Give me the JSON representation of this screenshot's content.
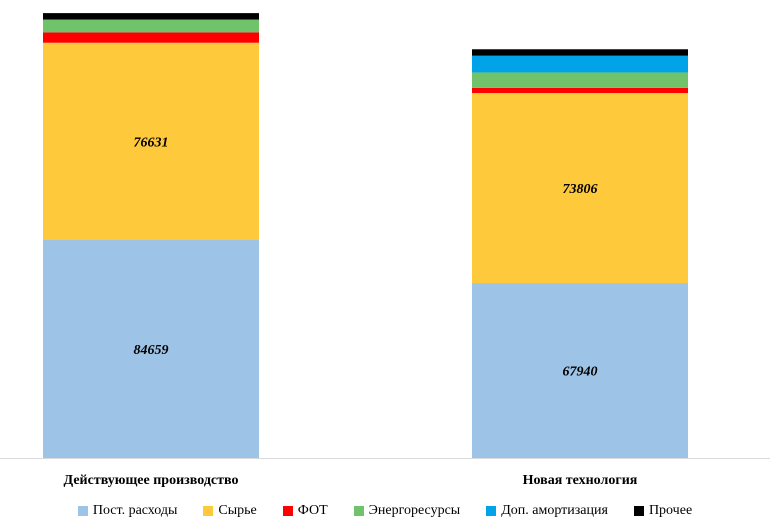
{
  "chart_data": {
    "type": "bar",
    "stacked": true,
    "categories": [
      "Действующее производство",
      "Новая технология"
    ],
    "series": [
      {
        "name": "Пост. расходы",
        "color": "#9dc3e6",
        "values": [
          84659,
          67940
        ],
        "labels": [
          "84659",
          "67940"
        ]
      },
      {
        "name": "Сырье",
        "color": "#ffc93c",
        "values": [
          76631,
          73806
        ],
        "labels": [
          "76631",
          "73806"
        ]
      },
      {
        "name": "ФОТ",
        "color": "#ff0000",
        "values": [
          4000,
          2000
        ],
        "labels": [
          "",
          ""
        ]
      },
      {
        "name": "Энергоресурсы",
        "color": "#70c36b",
        "values": [
          5000,
          6000
        ],
        "labels": [
          "",
          ""
        ]
      },
      {
        "name": "Доп. амортизация",
        "color": "#00a2e8",
        "values": [
          0,
          6500
        ],
        "labels": [
          "",
          ""
        ]
      },
      {
        "name": "Прочее",
        "color": "#000000",
        "values": [
          2500,
          2500
        ],
        "labels": [
          "",
          ""
        ]
      }
    ],
    "ylim": [
      0,
      174000
    ],
    "grid": false,
    "legend_position": "bottom",
    "title": "",
    "xlabel": "",
    "ylabel": ""
  }
}
